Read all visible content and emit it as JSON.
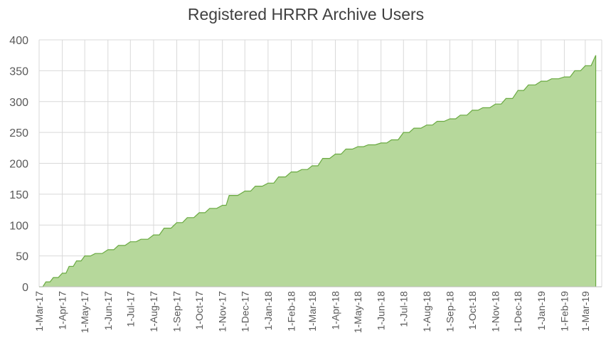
{
  "chart_data": {
    "type": "area",
    "title": "Registered HRRR Archive Users",
    "xlabel": "",
    "ylabel": "",
    "ylim": [
      0,
      400
    ],
    "yticks": [
      0,
      50,
      100,
      150,
      200,
      250,
      300,
      350,
      400
    ],
    "grid": true,
    "legend": "none",
    "colors": {
      "fill": "#b6d89b",
      "line": "#6aaa42",
      "grid": "#d9d9d9",
      "axis": "#bfbfbf",
      "text": "#595959",
      "title": "#404040"
    },
    "x_tick_labels": [
      "1-Mar-17",
      "1-Apr-17",
      "1-May-17",
      "1-Jun-17",
      "1-Jul-17",
      "1-Aug-17",
      "1-Sep-17",
      "1-Oct-17",
      "1-Nov-17",
      "1-Dec-17",
      "1-Jan-18",
      "1-Feb-18",
      "1-Mar-18",
      "1-Apr-18",
      "1-May-18",
      "1-Jun-18",
      "1-Jul-18",
      "1-Aug-18",
      "1-Sep-18",
      "1-Oct-18",
      "1-Nov-18",
      "1-Dec-18",
      "1-Jan-19",
      "1-Feb-19",
      "1-Mar-19"
    ],
    "series": [
      {
        "name": "",
        "x": [
          "1-Mar-17",
          "10-Mar-17",
          "20-Mar-17",
          "1-Apr-17",
          "10-Apr-17",
          "20-Apr-17",
          "1-May-17",
          "15-May-17",
          "1-Jun-17",
          "15-Jun-17",
          "1-Jul-17",
          "15-Jul-17",
          "1-Aug-17",
          "15-Aug-17",
          "1-Sep-17",
          "15-Sep-17",
          "1-Oct-17",
          "15-Oct-17",
          "1-Nov-17",
          "10-Nov-17",
          "1-Dec-17",
          "15-Dec-17",
          "1-Jan-18",
          "15-Jan-18",
          "1-Feb-18",
          "15-Feb-18",
          "1-Mar-18",
          "15-Mar-18",
          "1-Apr-18",
          "15-Apr-18",
          "1-May-18",
          "15-May-18",
          "1-Jun-18",
          "15-Jun-18",
          "1-Jul-18",
          "15-Jul-18",
          "1-Aug-18",
          "15-Aug-18",
          "1-Sep-18",
          "15-Sep-18",
          "1-Oct-18",
          "15-Oct-18",
          "1-Nov-18",
          "15-Nov-18",
          "1-Dec-18",
          "15-Dec-18",
          "1-Jan-19",
          "15-Jan-19",
          "1-Feb-19",
          "15-Feb-19",
          "1-Mar-19",
          "15-Mar-19"
        ],
        "values": [
          0,
          8,
          15,
          22,
          33,
          42,
          50,
          54,
          60,
          67,
          73,
          77,
          84,
          95,
          104,
          112,
          120,
          127,
          132,
          148,
          155,
          163,
          168,
          178,
          186,
          190,
          196,
          208,
          215,
          223,
          227,
          230,
          233,
          238,
          250,
          257,
          262,
          268,
          272,
          278,
          286,
          290,
          296,
          305,
          318,
          327,
          333,
          337,
          340,
          350,
          358,
          375
        ]
      }
    ]
  }
}
